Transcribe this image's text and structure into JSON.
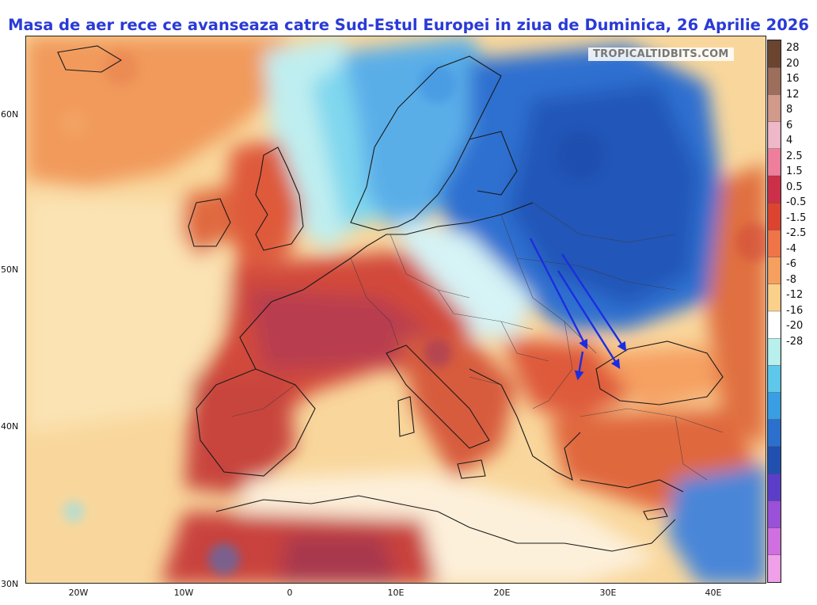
{
  "title": "Masa de aer rece ce avanseaza catre Sud-Estul Europei in ziua de Duminica, 26 Aprilie 2026",
  "watermark": "TROPICALTIDBITS.COM",
  "colorbar": {
    "labels": [
      "28",
      "20",
      "16",
      "12",
      "8",
      "6",
      "4",
      "2.5",
      "1.5",
      "0.5",
      "-0.5",
      "-1.5",
      "-2.5",
      "-4",
      "-6",
      "-8",
      "-12",
      "-16",
      "-20",
      "-28"
    ],
    "colors": [
      "#6b4430",
      "#9e6e5c",
      "#d29a8a",
      "#eeb8c8",
      "#ee7f9c",
      "#cc3048",
      "#dd4430",
      "#ef7448",
      "#f6a060",
      "#fbd08a",
      "#ffffff",
      "#b8f0ee",
      "#5ec8ec",
      "#3a9ee4",
      "#2a70cc",
      "#2050b0",
      "#5a3ec8",
      "#9a50d8",
      "#d070e0",
      "#f0a0e8"
    ]
  },
  "axes": {
    "latitude_labels": [
      "60N",
      "50N",
      "40N",
      "30N"
    ],
    "longitude_labels": [
      "20W",
      "10W",
      "0",
      "10E",
      "20E",
      "30E",
      "40E"
    ]
  },
  "legend_colors": {
    "title": "#2a3ad6",
    "arrows": "#1a2ee0"
  }
}
